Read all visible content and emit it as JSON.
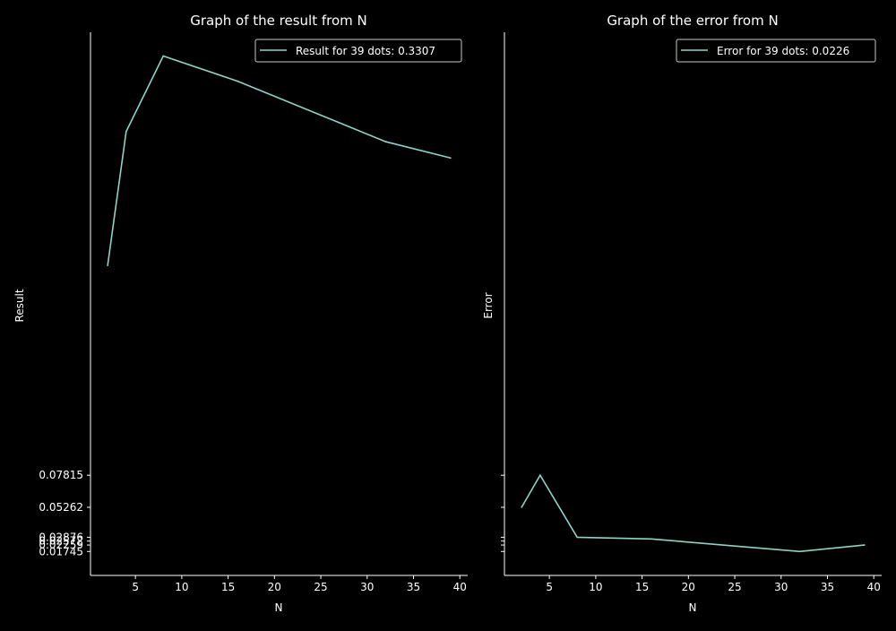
{
  "chart_data": [
    {
      "type": "line",
      "title": "Graph of the result from N",
      "xlabel": "N",
      "ylabel": "Result",
      "xlim": [
        0.15,
        40.85
      ],
      "ylim": [
        -0.00163,
        0.4308
      ],
      "xticks": [
        5,
        10,
        15,
        20,
        25,
        30,
        35,
        40
      ],
      "xtick_labels": [
        "5",
        "10",
        "15",
        "20",
        "25",
        "30",
        "35",
        "40"
      ],
      "yticks": [
        0.01745,
        0.02259,
        0.02572,
        0.02876,
        0.05262,
        0.07815
      ],
      "ytick_labels": [
        "0.01745",
        "0.02259",
        "0.02572",
        "0.02876",
        "0.05262",
        "0.07815"
      ],
      "legend_position": "top-right",
      "grid": false,
      "series": [
        {
          "name": "Result for 39 dots: 0.3307",
          "color": "#8dd3c7",
          "x": [
            2,
            4,
            8,
            16,
            32,
            39
          ],
          "y": [
            0.2451,
            0.3518,
            0.4119,
            0.3919,
            0.3437,
            0.3307
          ]
        }
      ]
    },
    {
      "type": "line",
      "title": "Graph of the error from N",
      "xlabel": "N",
      "ylabel": "Error",
      "xlim": [
        0.15,
        40.85
      ],
      "ylim": [
        -0.00163,
        0.4308
      ],
      "xticks": [
        5,
        10,
        15,
        20,
        25,
        30,
        35,
        40
      ],
      "xtick_labels": [
        "5",
        "10",
        "15",
        "20",
        "25",
        "30",
        "35",
        "40"
      ],
      "yticks": [
        0.01745,
        0.02259,
        0.02572,
        0.02876,
        0.05262,
        0.07815
      ],
      "ytick_labels": [],
      "legend_position": "top-right",
      "grid": false,
      "series": [
        {
          "name": "Error for 39 dots: 0.0226",
          "color": "#8dd3c7",
          "x": [
            2,
            4,
            8,
            16,
            32,
            39
          ],
          "y": [
            0.05262,
            0.07815,
            0.02876,
            0.0274,
            0.01745,
            0.02259
          ]
        }
      ]
    }
  ]
}
